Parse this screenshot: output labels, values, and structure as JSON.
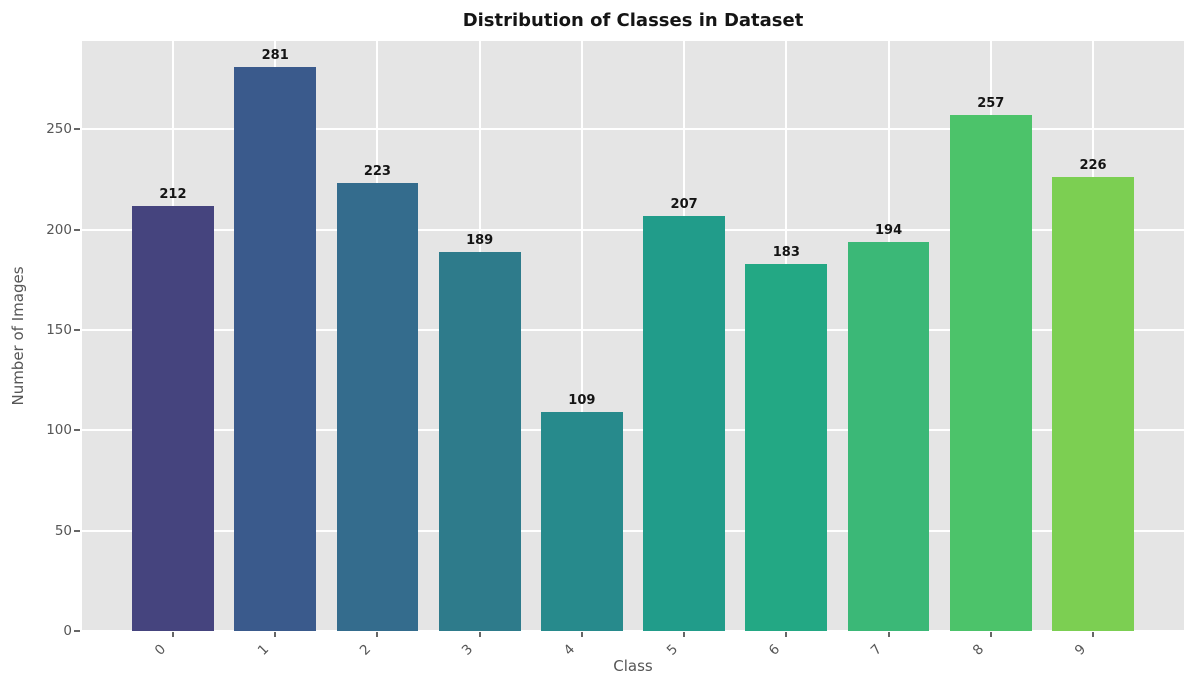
{
  "chart_data": {
    "type": "bar",
    "title": "Distribution of Classes in Dataset",
    "xlabel": "Class",
    "ylabel": "Number of Images",
    "categories": [
      "0",
      "1",
      "2",
      "3",
      "4",
      "5",
      "6",
      "7",
      "8",
      "9"
    ],
    "values": [
      212,
      281,
      223,
      189,
      109,
      207,
      183,
      194,
      257,
      226
    ],
    "bar_colors": [
      "#45447E",
      "#3A5A8C",
      "#346C8D",
      "#2E7B8B",
      "#278A8C",
      "#219C8A",
      "#23A884",
      "#3BB877",
      "#4CC36A",
      "#7CCF52"
    ],
    "yticks": [
      0,
      50,
      100,
      150,
      200,
      250
    ],
    "ylim": [
      0,
      294
    ],
    "xlim": [
      -0.89,
      9.89
    ],
    "bar_width": 0.8,
    "grid": true,
    "legend": false,
    "value_labels_shown": true,
    "colors": {
      "figure_bg": "#FFFFFF",
      "plot_bg": "#E5E5E5",
      "grid_color": "#FFFFFF",
      "tick_mark_color": "#666666",
      "axis_text_color": "#565656",
      "title_color": "#151515",
      "value_label_color": "#141414"
    }
  }
}
